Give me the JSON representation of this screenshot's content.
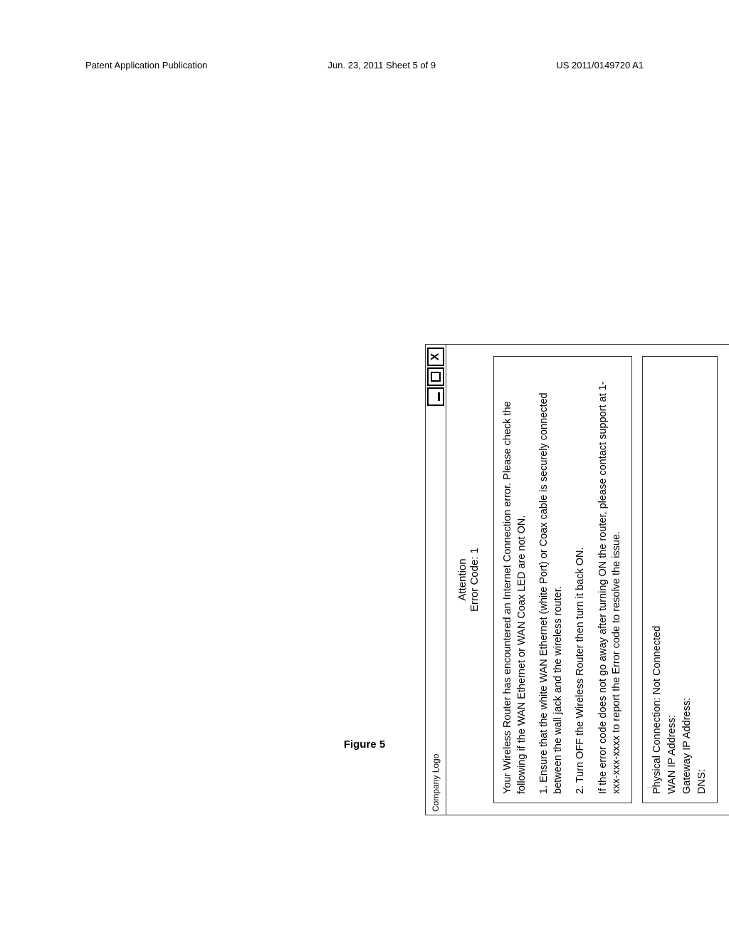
{
  "header": {
    "left": "Patent Application Publication",
    "center": "Jun. 23, 2011  Sheet 5 of 9",
    "right": "US 2011/0149720 A1"
  },
  "window": {
    "title": "Company Logo",
    "buttons": {
      "min_glyph": "",
      "max_glyph": "",
      "close_glyph": "X"
    },
    "attention_line1": "Attention",
    "attention_line2": "Error Code: 1",
    "message": {
      "intro": "Your Wireless Router has encountered an Internet Connection error. Please check the following if the WAN Ethernet or WAN Coax LED are not ON.",
      "step1": "1. Ensure that the white WAN Ethernet (white Port) or Coax cable is securely connected between the wall jack and the wireless router.",
      "step2": "2. Turn OFF the Wireless Router then turn it back ON.",
      "support": "If the error code does not go away after turning ON the router, please contact support at 1-xxx-xxx-xxxx to report the Error code to resolve the issue."
    },
    "status": {
      "phys_label": "Physical Connection:",
      "phys_value": "Not Connected",
      "wan_label": "WAN IP Address:",
      "wan_value": "",
      "gw_label": "Gateway IP Address:",
      "gw_value": "",
      "dns_label": "DNS:",
      "dns_value": ""
    }
  },
  "figure_label": "Figure 5",
  "colors": {
    "border": "#333333",
    "background": "#ffffff",
    "text": "#000000"
  }
}
